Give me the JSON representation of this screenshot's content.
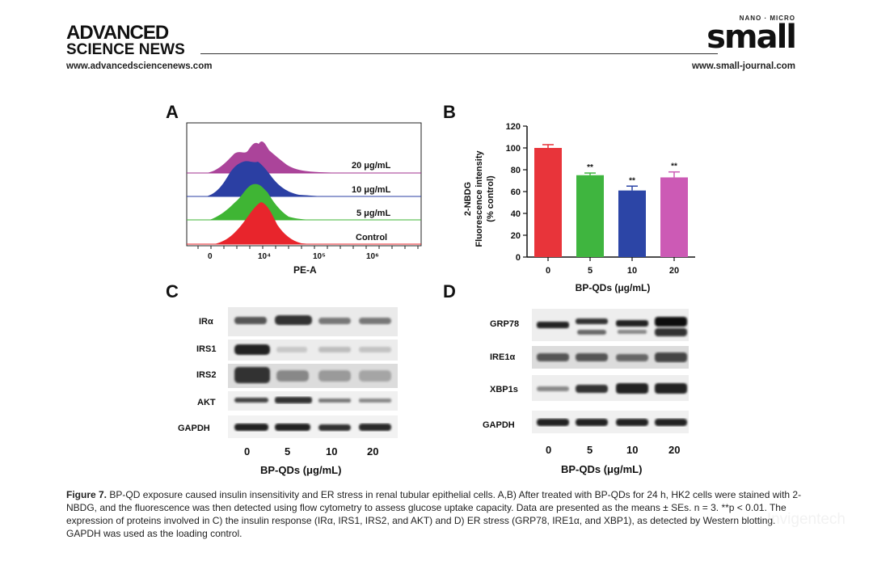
{
  "header": {
    "journal_left_line1": "ADVANCED",
    "journal_left_line2": "SCIENCE NEWS",
    "url_left": "www.advancedsciencenews.com",
    "journal_right_small": "NANO · MICRO",
    "journal_right_big": "small",
    "url_right": "www.small-journal.com"
  },
  "panels": {
    "A": {
      "letter": "A",
      "xlabel": "PE-A",
      "tick_labels": [
        "0",
        "10⁴",
        "10⁵",
        "10⁶"
      ],
      "series": [
        {
          "name": "20 μg/mL",
          "color": "#a2308f"
        },
        {
          "name": "10 μg/mL",
          "color": "#2b3fa3"
        },
        {
          "name": "5 μg/mL",
          "color": "#3fb534"
        },
        {
          "name": "Control",
          "color": "#e8252c"
        }
      ]
    },
    "B": {
      "letter": "B"
    },
    "C": {
      "letter": "C",
      "rows": [
        "IRα",
        "IRS1",
        "IRS2",
        "AKT",
        "GAPDH"
      ],
      "lanes": [
        "0",
        "5",
        "10",
        "20"
      ],
      "xlabel": "BP-QDs (μg/mL)"
    },
    "D": {
      "letter": "D",
      "rows": [
        "GRP78",
        "IRE1α",
        "XBP1s",
        "GAPDH"
      ],
      "lanes": [
        "0",
        "5",
        "10",
        "20"
      ],
      "xlabel": "BP-QDs (μg/mL)"
    }
  },
  "chart_data": {
    "type": "bar",
    "categories": [
      "0",
      "5",
      "10",
      "20"
    ],
    "values": [
      100,
      75,
      61,
      73
    ],
    "errors": [
      3,
      2,
      4,
      5
    ],
    "significance": [
      "",
      "**",
      "**",
      "**"
    ],
    "colors": [
      "#e8343a",
      "#3fb53f",
      "#2c45a6",
      "#cc5ab5"
    ],
    "xlabel": "BP-QDs (μg/mL)",
    "ylabel_line1": "2-NBDG",
    "ylabel_line2": "Fluorescence intensity",
    "ylabel_line3": "(% control)",
    "ylim": [
      0,
      120
    ],
    "yticks": [
      "0",
      "20",
      "40",
      "60",
      "80",
      "100",
      "120"
    ]
  },
  "caption": {
    "fig_label": "Figure 7.",
    "text": "BP-QD exposure caused insulin insensitivity and ER stress in renal tubular epithelial cells. A,B) After treated with BP-QDs for 24 h, HK2 cells were stained with 2-NBDG, and the fluorescence was then detected using flow cytometry to assess glucose uptake capacity. Data are presented as the means ± SEs. n = 3. **p < 0.01. The expression of proteins involved in C) the insulin response (IRα, IRS1, IRS2, and AKT) and D) ER stress (GRP78, IRE1α, and XBP1), as detected by Western blotting. GAPDH was used as the loading control."
  },
  "watermark": "Invigentech"
}
